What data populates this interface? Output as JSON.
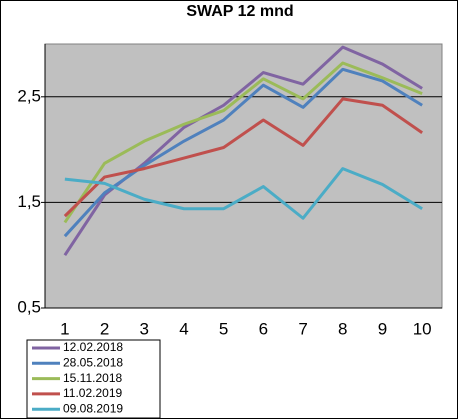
{
  "chart_data": {
    "type": "line",
    "title": "SWAP 12 mnd",
    "categories": [
      "1",
      "2",
      "3",
      "4",
      "5",
      "6",
      "7",
      "8",
      "9",
      "10"
    ],
    "series": [
      {
        "name": "12.02.2018",
        "color": "#8064a2",
        "values": [
          1.0,
          1.57,
          1.87,
          2.21,
          2.42,
          2.73,
          2.62,
          2.97,
          2.81,
          2.58
        ]
      },
      {
        "name": "28.05.2018",
        "color": "#4f81bd",
        "values": [
          1.18,
          1.59,
          1.85,
          2.08,
          2.28,
          2.61,
          2.4,
          2.76,
          2.65,
          2.42
        ]
      },
      {
        "name": "15.11.2018",
        "color": "#9bbb59",
        "values": [
          1.31,
          1.87,
          2.08,
          2.24,
          2.37,
          2.67,
          2.48,
          2.82,
          2.68,
          2.53
        ]
      },
      {
        "name": "11.02.2019",
        "color": "#c0504d",
        "values": [
          1.37,
          1.74,
          1.82,
          1.92,
          2.02,
          2.28,
          2.04,
          2.48,
          2.42,
          2.16
        ]
      },
      {
        "name": "09.08.2019",
        "color": "#4bacc6",
        "values": [
          1.72,
          1.68,
          1.53,
          1.44,
          1.44,
          1.65,
          1.35,
          1.82,
          1.67,
          1.44
        ]
      }
    ],
    "ylim": [
      0.5,
      3.0
    ],
    "yticks": [
      {
        "value": 0.5,
        "label": "0,5"
      },
      {
        "value": 1.5,
        "label": "1,5"
      },
      {
        "value": 2.5,
        "label": "2,5"
      }
    ],
    "grid": true
  }
}
